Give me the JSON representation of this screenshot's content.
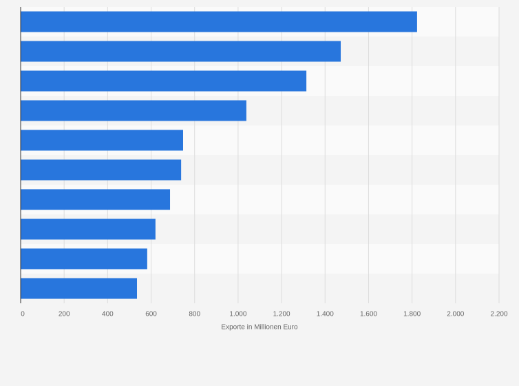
{
  "chart_data": {
    "type": "hbar",
    "orientation": "horizontal",
    "values": [
      1823,
      1472,
      1314,
      1038,
      747,
      738,
      687,
      620,
      582,
      535
    ],
    "color": "#2876dd",
    "xlabel": "Exporte in Millionen Euro",
    "xlim": [
      0,
      2200
    ],
    "xticks": [
      0,
      200,
      400,
      600,
      800,
      {
        "value": 1000,
        "label": "1.000"
      },
      {
        "value": 1200,
        "label": "1.200"
      },
      {
        "value": 1400,
        "label": "1.400"
      },
      {
        "value": 1600,
        "label": "1.600"
      },
      {
        "value": 1800,
        "label": "1.800"
      },
      {
        "value": 2000,
        "label": "2.000"
      },
      {
        "value": 2200,
        "label": "2.200"
      }
    ],
    "grid": true
  }
}
